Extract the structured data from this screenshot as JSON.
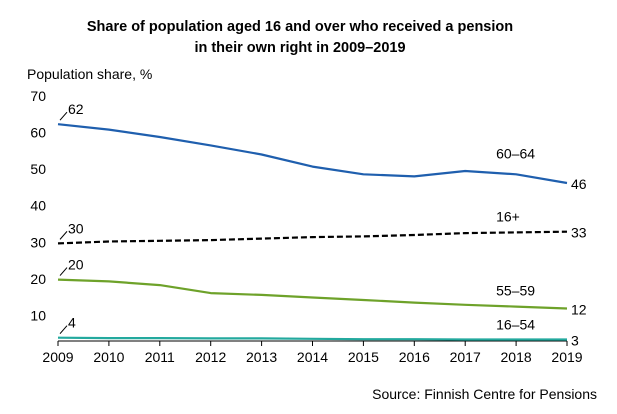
{
  "chart_data": {
    "type": "line",
    "title_lines": [
      "Share of population aged 16 and over who received a pension",
      "in their own right in 2009–2019"
    ],
    "ylabel": "Population share, %",
    "xlabel": "",
    "source": "Source: Finnish Centre for Pensions",
    "x": [
      2009,
      2010,
      2011,
      2012,
      2013,
      2014,
      2015,
      2016,
      2017,
      2018,
      2019
    ],
    "x_tick_labels": [
      "2009",
      "2010",
      "2011",
      "2012",
      "2013",
      "2014",
      "2015",
      "2016",
      "2017",
      "2018",
      "2019"
    ],
    "ylim": [
      3,
      70
    ],
    "y_ticks": [
      10,
      20,
      30,
      40,
      50,
      60,
      70
    ],
    "y_tick_labels": [
      "10",
      "20",
      "30",
      "40",
      "50",
      "60",
      "70"
    ],
    "grid": false,
    "series": [
      {
        "name": "60–64",
        "color": "#1f5fae",
        "dashed": false,
        "values": [
          62.3,
          60.8,
          58.8,
          56.5,
          54.0,
          50.7,
          48.6,
          48.0,
          49.5,
          48.6,
          46.2
        ],
        "start_label": "62",
        "end_label": "46"
      },
      {
        "name": "16+",
        "color": "#000000",
        "dashed": true,
        "values": [
          29.7,
          30.2,
          30.4,
          30.6,
          31.0,
          31.4,
          31.6,
          32.0,
          32.5,
          32.7,
          32.9
        ],
        "start_label": "30",
        "end_label": "33"
      },
      {
        "name": "55–59",
        "color": "#6ea22a",
        "dashed": false,
        "values": [
          19.8,
          19.3,
          18.3,
          16.1,
          15.6,
          14.9,
          14.2,
          13.5,
          12.9,
          12.4,
          11.9
        ],
        "start_label": "20",
        "end_label": "12"
      },
      {
        "name": "16–54",
        "color": "#23a99e",
        "dashed": false,
        "values": [
          3.9,
          3.8,
          3.8,
          3.7,
          3.7,
          3.6,
          3.5,
          3.5,
          3.4,
          3.4,
          3.4
        ],
        "start_label": "4",
        "end_label": "3"
      }
    ]
  }
}
